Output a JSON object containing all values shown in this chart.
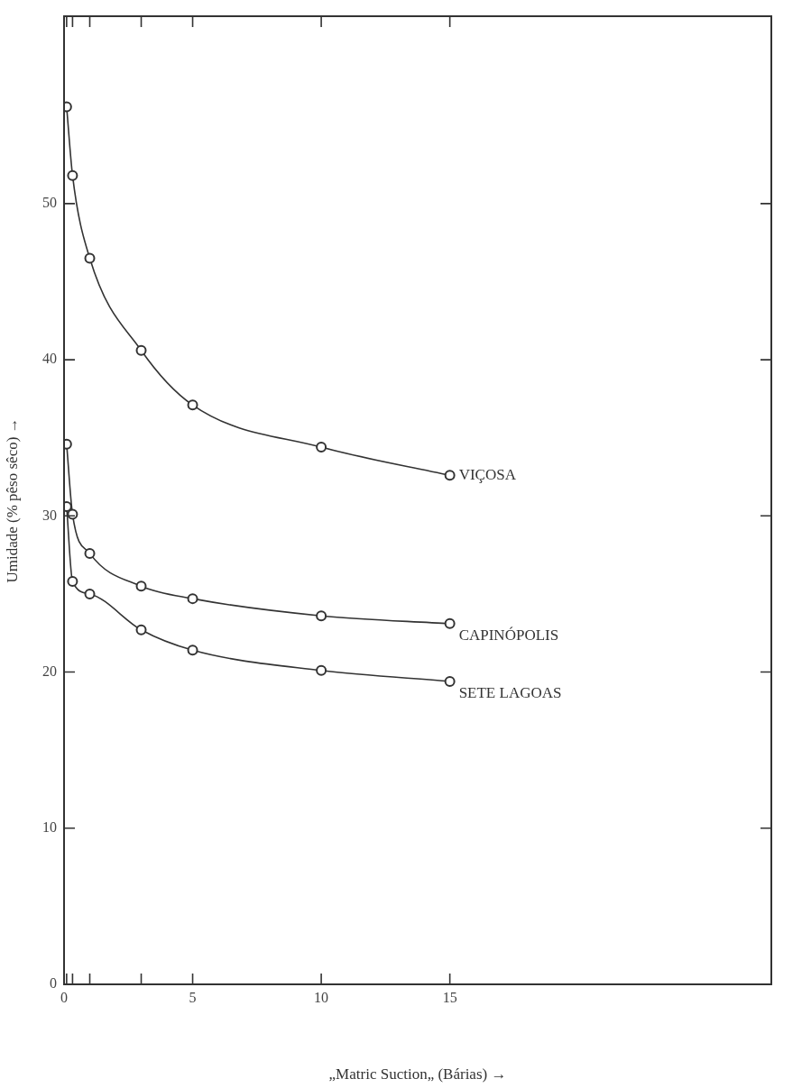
{
  "chart_data": {
    "type": "line",
    "xlabel": "„Matric Suction„ (Bárias) →",
    "ylabel": "Umidade (% pêso sêco) →",
    "x": [
      0.1,
      0.33,
      1,
      3,
      5,
      10,
      15
    ],
    "series": [
      {
        "name": "VIÇOSA",
        "color": "#333333",
        "values": [
          56.2,
          51.8,
          46.5,
          40.6,
          37.1,
          34.4,
          32.6
        ]
      },
      {
        "name": "CAPINÓPOLIS",
        "color": "#333333",
        "values": [
          34.6,
          30.1,
          27.6,
          25.5,
          24.7,
          23.6,
          23.1
        ]
      },
      {
        "name": "SETE LAGOAS",
        "color": "#333333",
        "values": [
          30.6,
          25.8,
          25.0,
          22.7,
          21.4,
          20.1,
          19.4
        ]
      }
    ],
    "xlim": [
      0,
      27.5
    ],
    "xticks": [
      0,
      {
        "value": 0.1,
        "label": null
      },
      {
        "value": 0.33,
        "label": null
      },
      {
        "value": 1,
        "label": null
      },
      {
        "value": 3,
        "label": null
      },
      5,
      10,
      15
    ],
    "ylim": [
      0,
      62
    ],
    "yticks": [
      0,
      10,
      20,
      30,
      40,
      50
    ],
    "grid": false,
    "legend": false,
    "marker": "circle",
    "line_style": "solid"
  }
}
